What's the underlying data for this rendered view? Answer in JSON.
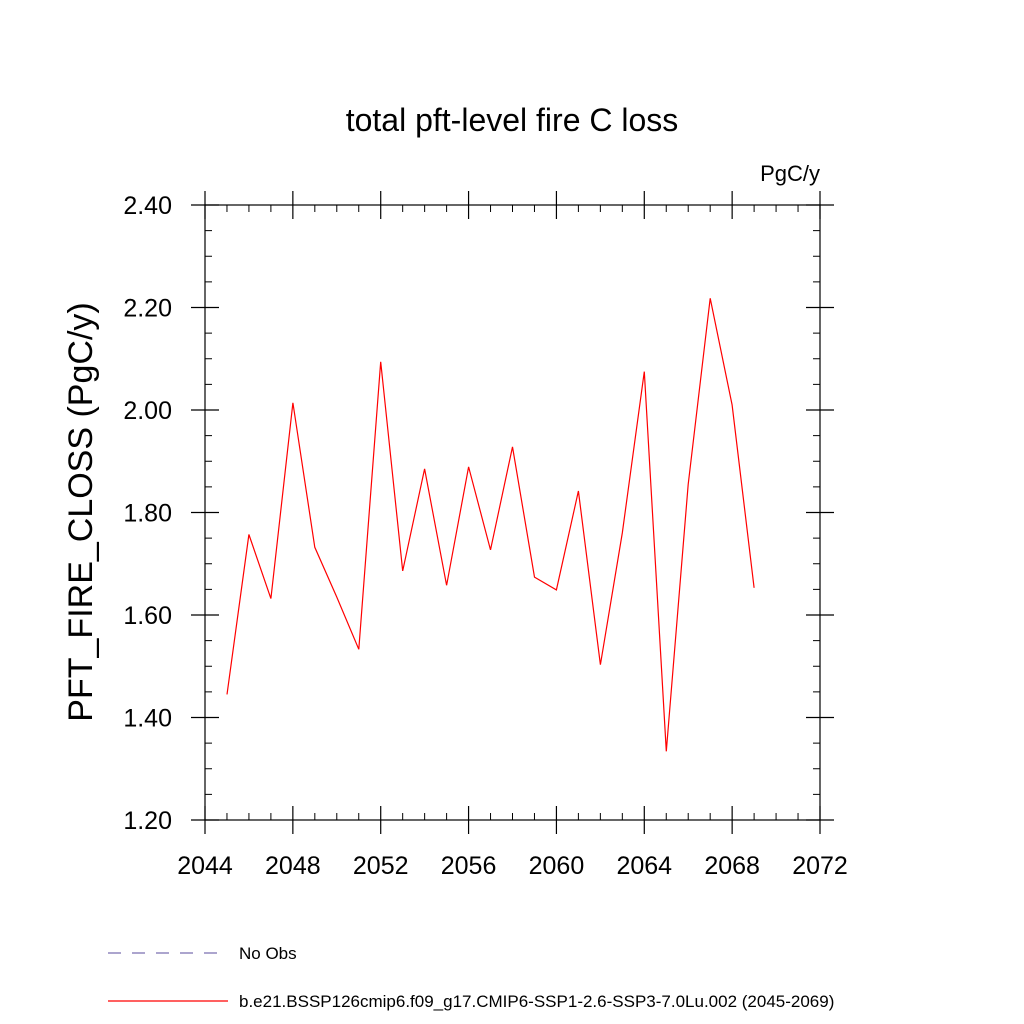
{
  "chart_data": {
    "type": "line",
    "title": "total pft-level fire C loss",
    "units_label": "PgC/y",
    "xlabel": "",
    "ylabel": "PFT_FIRE_CLOSS  (PgC/y)",
    "xlim": [
      2044,
      2072
    ],
    "ylim": [
      1.2,
      2.4
    ],
    "x_ticks": [
      2044,
      2048,
      2052,
      2056,
      2060,
      2064,
      2068,
      2072
    ],
    "x_tick_labels": [
      "2044",
      "2048",
      "2052",
      "2056",
      "2060",
      "2064",
      "2068",
      "2072"
    ],
    "y_ticks": [
      1.2,
      1.4,
      1.6,
      1.8,
      2.0,
      2.2,
      2.4
    ],
    "y_tick_labels": [
      "1.20",
      "1.40",
      "1.60",
      "1.80",
      "2.00",
      "2.20",
      "2.40"
    ],
    "x_minor_step": 1,
    "y_minor_step": 0.05,
    "grid": false,
    "series": [
      {
        "name": "b.e21.BSSP126cmip6.f09_g17.CMIP6-SSP1-2.6-SSP3-7.0Lu.002 (2045-2069)",
        "color": "#ff0000",
        "x": [
          2045,
          2046,
          2047,
          2048,
          2049,
          2050,
          2051,
          2052,
          2053,
          2054,
          2055,
          2056,
          2057,
          2058,
          2059,
          2060,
          2061,
          2062,
          2063,
          2064,
          2065,
          2066,
          2067,
          2068,
          2069
        ],
        "values": [
          1.445,
          1.757,
          1.632,
          2.014,
          1.732,
          1.635,
          1.533,
          2.094,
          1.686,
          1.885,
          1.658,
          1.889,
          1.727,
          1.928,
          1.674,
          1.649,
          1.842,
          1.503,
          1.76,
          2.075,
          1.334,
          1.855,
          2.218,
          2.01,
          1.653
        ]
      }
    ],
    "legend": [
      {
        "label": "No Obs",
        "style": "dashed",
        "color": "#7a6fb0"
      },
      {
        "label": "b.e21.BSSP126cmip6.f09_g17.CMIP6-SSP1-2.6-SSP3-7.0Lu.002 (2045-2069)",
        "style": "solid",
        "color": "#ff0000"
      }
    ]
  }
}
